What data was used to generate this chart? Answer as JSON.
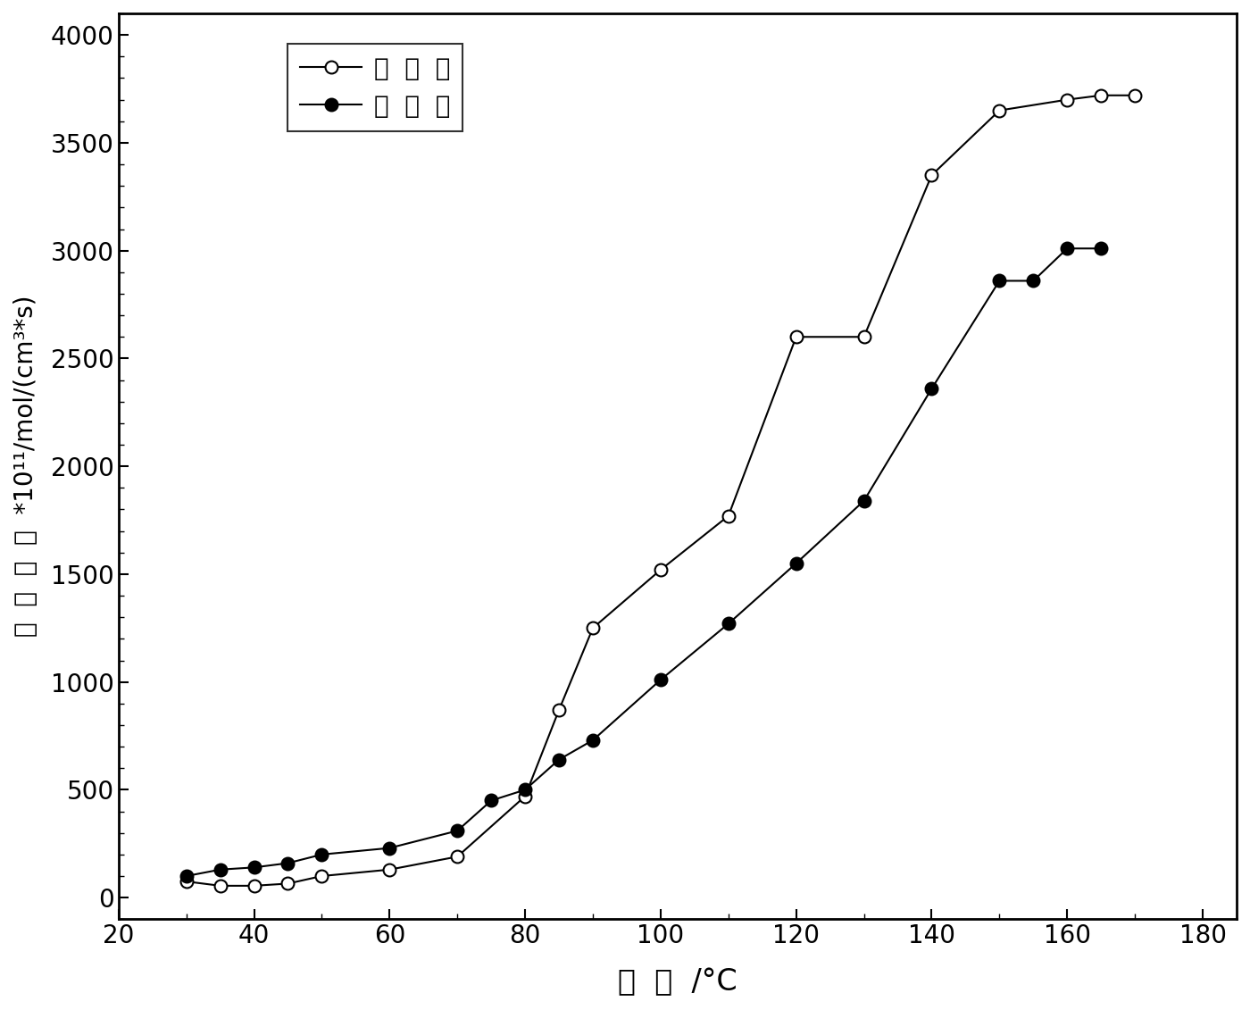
{
  "series1_label": "阻  化  剂",
  "series2_label": "空  白  样",
  "series1_x": [
    30,
    35,
    40,
    45,
    50,
    60,
    70,
    80,
    85,
    90,
    100,
    110,
    120,
    130,
    140,
    150,
    160,
    165,
    170
  ],
  "series1_y": [
    75,
    55,
    55,
    65,
    100,
    130,
    190,
    470,
    870,
    1250,
    1520,
    1770,
    2600,
    2600,
    3350,
    3650,
    3700,
    3720,
    3720
  ],
  "series2_x": [
    30,
    35,
    40,
    45,
    50,
    60,
    70,
    75,
    80,
    85,
    90,
    100,
    110,
    120,
    130,
    140,
    150,
    155,
    160,
    165
  ],
  "series2_y": [
    100,
    130,
    140,
    160,
    200,
    230,
    310,
    450,
    500,
    640,
    730,
    1010,
    1270,
    1550,
    1840,
    2360,
    2860,
    2860,
    3010,
    3010
  ],
  "xlabel": "温  度  /°C",
  "ylabel": "耗  氧  速  率  *10¹¹/mol/(cm³*s)",
  "xlim": [
    20,
    185
  ],
  "ylim": [
    -100,
    4100
  ],
  "xticks": [
    20,
    40,
    60,
    80,
    100,
    120,
    140,
    160,
    180
  ],
  "yticks": [
    0,
    500,
    1000,
    1500,
    2000,
    2500,
    3000,
    3500,
    4000
  ],
  "background_color": "#ffffff",
  "line_color": "#000000",
  "marker_size": 10,
  "linewidth": 1.5
}
